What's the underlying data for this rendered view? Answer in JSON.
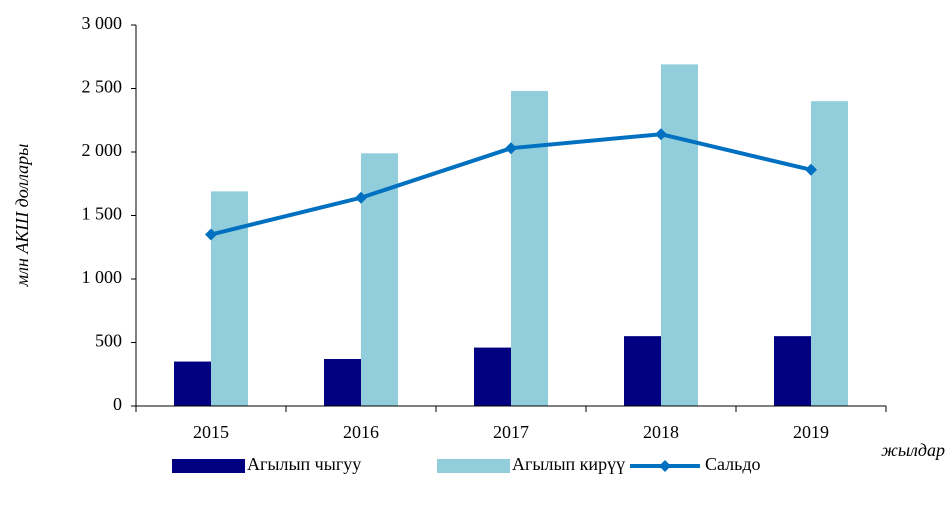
{
  "chart_data": {
    "type": "bar",
    "y_label": "млн АКШ доллары",
    "x_label": "жылдар",
    "categories": [
      "2015",
      "2016",
      "2017",
      "2018",
      "2019"
    ],
    "series": [
      {
        "name": "Агылып чыгуу",
        "type": "bar",
        "color": "#000080",
        "values": [
          350,
          370,
          460,
          550,
          550
        ]
      },
      {
        "name": "Агылып кирүү",
        "type": "bar",
        "color": "#92cddc",
        "values": [
          1690,
          1990,
          2480,
          2690,
          2400
        ]
      },
      {
        "name": "Сальдо",
        "type": "line",
        "color": "#0070c0",
        "values": [
          1350,
          1640,
          2030,
          2140,
          1860
        ]
      }
    ],
    "ylim": [
      0,
      3000
    ],
    "yticks": [
      0,
      500,
      {
        "value": 1000,
        "label": "1 000"
      },
      {
        "value": 1500,
        "label": "1 500"
      },
      {
        "value": 2000,
        "label": "2 000"
      },
      {
        "value": 2500,
        "label": "2 500"
      },
      {
        "value": 3000,
        "label": "3 000"
      }
    ],
    "grid": false,
    "legend": "bottom"
  }
}
